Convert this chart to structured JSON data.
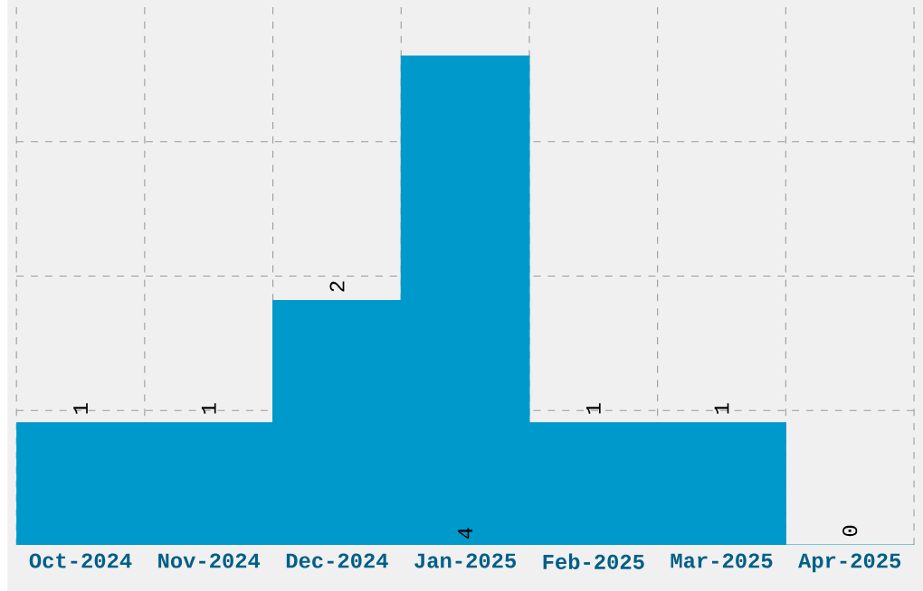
{
  "chart_data": {
    "type": "bar",
    "categories": [
      "Oct-2024",
      "Nov-2024",
      "Dec-2024",
      "Jan-2025",
      "Feb-2025",
      "Mar-2025",
      "Apr-2025"
    ],
    "values": [
      1,
      1,
      2,
      4,
      1,
      1,
      0
    ],
    "color": "#0099cc",
    "ylim": [
      0,
      4.4
    ],
    "yticks": [
      {
        "value": 1.1,
        "label": null
      },
      {
        "value": 2.2,
        "label": null
      },
      {
        "value": 3.3,
        "label": null
      }
    ],
    "tick_labels": "x",
    "grid": true,
    "data_labels": true
  }
}
